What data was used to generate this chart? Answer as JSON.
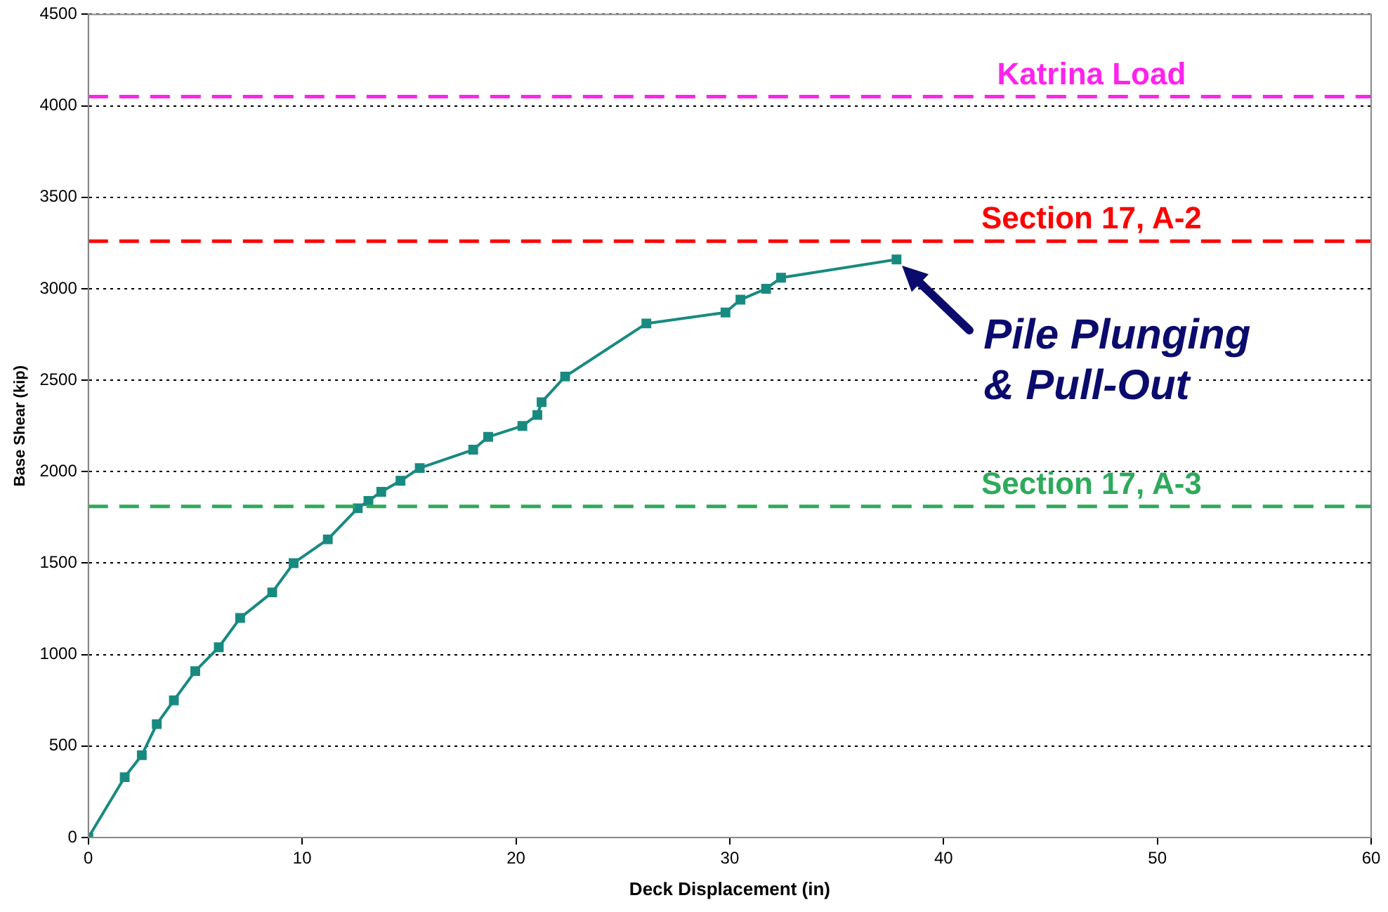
{
  "chart_data": {
    "type": "line",
    "xlabel": "Deck Displacement (in)",
    "ylabel": "Base Shear (kip)",
    "x": [
      0,
      1.7,
      2.5,
      3.2,
      4.0,
      5.0,
      6.1,
      7.1,
      8.6,
      9.6,
      11.2,
      12.6,
      13.1,
      13.7,
      14.6,
      15.5,
      18.0,
      18.7,
      20.3,
      21.0,
      21.2,
      22.3,
      26.1,
      29.8,
      30.5,
      31.7,
      32.4,
      37.8
    ],
    "series": [
      {
        "color": "#188a80",
        "values": [
          0,
          330,
          450,
          620,
          750,
          910,
          1040,
          1200,
          1340,
          1500,
          1630,
          1800,
          1840,
          1890,
          1950,
          2020,
          2120,
          2190,
          2250,
          2310,
          2380,
          2520,
          2810,
          2870,
          2940,
          3000,
          3060,
          3160
        ]
      }
    ],
    "xlim": [
      0,
      60
    ],
    "xticks": [
      0,
      10,
      20,
      30,
      40,
      50,
      60
    ],
    "ylim": [
      0,
      4500
    ],
    "yticks": [
      0,
      500,
      1000,
      1500,
      2000,
      2500,
      3000,
      3500,
      4000,
      4500
    ],
    "grid": "y",
    "legend": false,
    "marker": "square",
    "line_style": "solid",
    "ref_lines": [
      {
        "axis": "y",
        "value": 4050,
        "label": "Katrina Load",
        "color": "#ff22ee",
        "line_style": "dashed"
      },
      {
        "axis": "y",
        "value": 3260,
        "label": "Section 17, A-2",
        "color": "#ff0000",
        "line_style": "dashed"
      },
      {
        "axis": "y",
        "value": 1810,
        "label": "Section 17, A-3",
        "color": "#2daa5a",
        "line_style": "dashed"
      }
    ],
    "annotations": [
      {
        "text": "Pile Plunging\n& Pull-Out",
        "x": 37.8,
        "y": 3160
      }
    ]
  }
}
